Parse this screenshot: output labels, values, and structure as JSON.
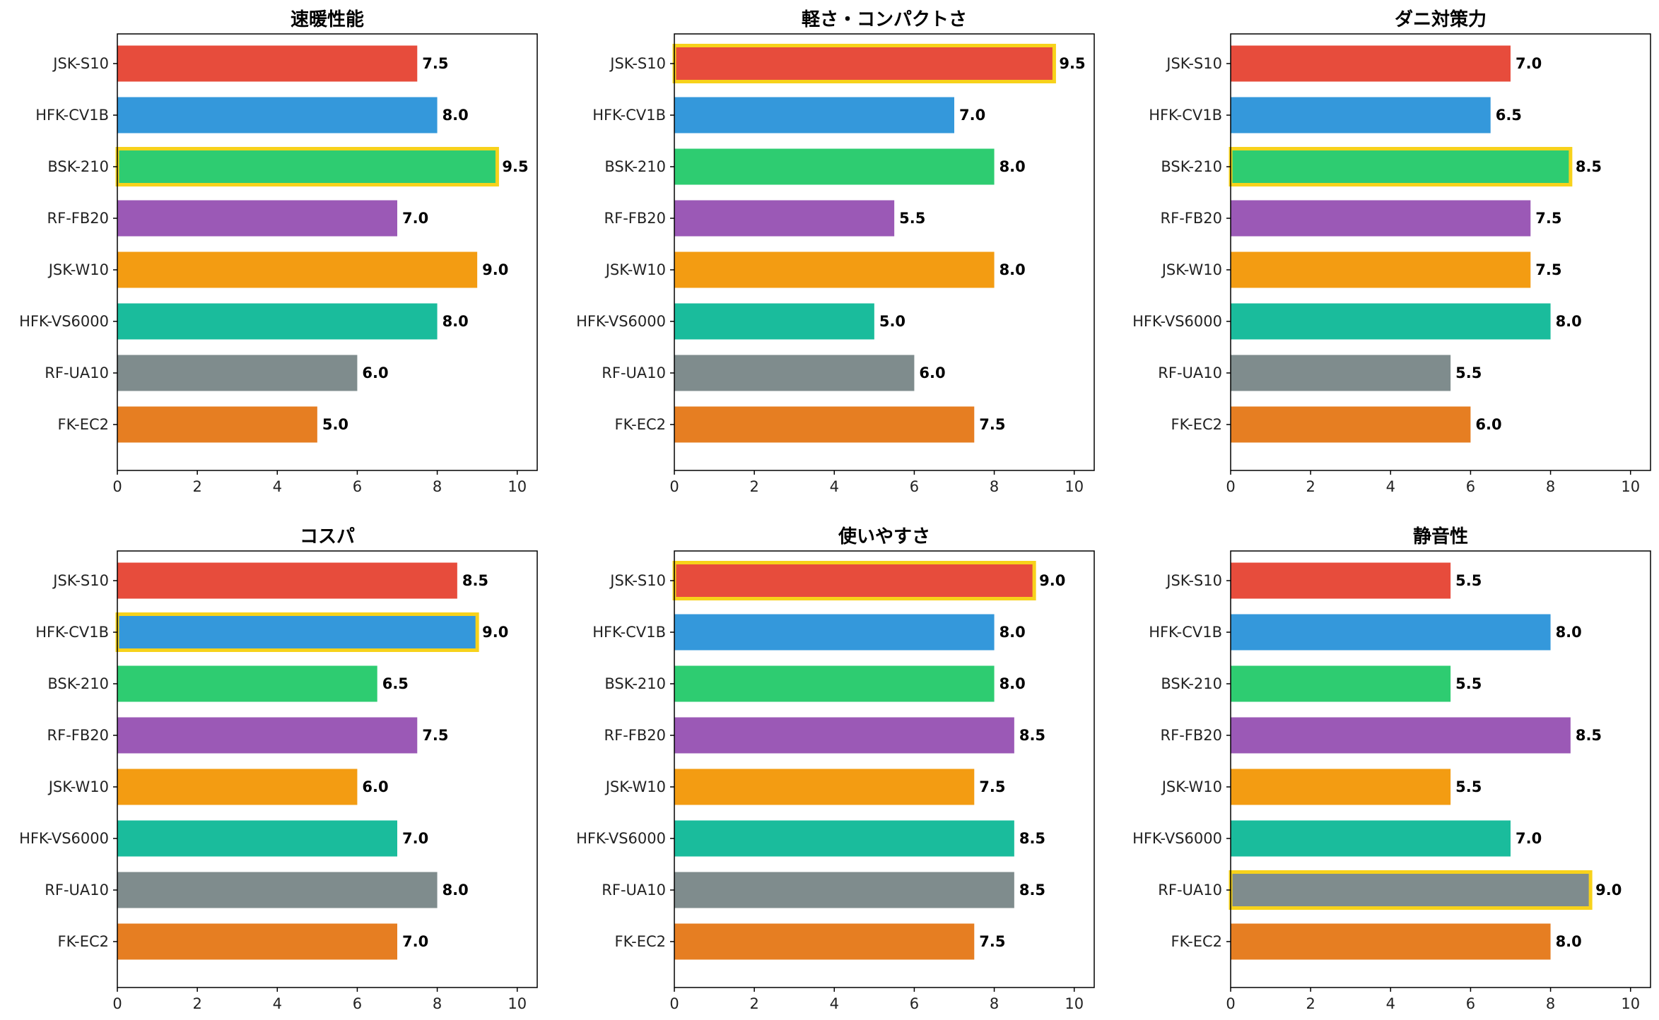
{
  "colors": {
    "JSK-S10": "#e74c3c",
    "HFK-CV1B": "#3498db",
    "BSK-210": "#2ecc71",
    "RF-FB20": "#9b59b6",
    "JSK-W10": "#f39c12",
    "HFK-VS6000": "#1abc9c",
    "RF-UA10": "#7f8c8d",
    "FK-EC2": "#e67e22",
    "highlight": "#f7d21b"
  },
  "chart_data": [
    {
      "type": "bar",
      "orientation": "horizontal",
      "title": "速暖性能",
      "categories": [
        "JSK-S10",
        "HFK-CV1B",
        "BSK-210",
        "RF-FB20",
        "JSK-W10",
        "HFK-VS6000",
        "RF-UA10",
        "FK-EC2"
      ],
      "values": [
        7.5,
        8.0,
        9.5,
        7.0,
        9.0,
        8.0,
        6.0,
        5.0
      ],
      "value_labels": [
        "7.5",
        "8.0",
        "9.5",
        "7.0",
        "9.0",
        "8.0",
        "6.0",
        "5.0"
      ],
      "highlight": "BSK-210",
      "xlim": [
        0,
        10.5
      ],
      "xticks": [
        0,
        2,
        4,
        6,
        8,
        10
      ],
      "xtick_labels": [
        "0",
        "2",
        "4",
        "6",
        "8",
        "10"
      ],
      "grid": false
    },
    {
      "type": "bar",
      "orientation": "horizontal",
      "title": "軽さ・コンパクトさ",
      "categories": [
        "JSK-S10",
        "HFK-CV1B",
        "BSK-210",
        "RF-FB20",
        "JSK-W10",
        "HFK-VS6000",
        "RF-UA10",
        "FK-EC2"
      ],
      "values": [
        9.5,
        7.0,
        8.0,
        5.5,
        8.0,
        5.0,
        6.0,
        7.5
      ],
      "value_labels": [
        "9.5",
        "7.0",
        "8.0",
        "5.5",
        "8.0",
        "5.0",
        "6.0",
        "7.5"
      ],
      "highlight": "JSK-S10",
      "xlim": [
        0,
        10.5
      ],
      "xticks": [
        0,
        2,
        4,
        6,
        8,
        10
      ],
      "xtick_labels": [
        "0",
        "2",
        "4",
        "6",
        "8",
        "10"
      ],
      "grid": false
    },
    {
      "type": "bar",
      "orientation": "horizontal",
      "title": "ダニ対策力",
      "categories": [
        "JSK-S10",
        "HFK-CV1B",
        "BSK-210",
        "RF-FB20",
        "JSK-W10",
        "HFK-VS6000",
        "RF-UA10",
        "FK-EC2"
      ],
      "values": [
        7.0,
        6.5,
        8.5,
        7.5,
        7.5,
        8.0,
        5.5,
        6.0
      ],
      "value_labels": [
        "7.0",
        "6.5",
        "8.5",
        "7.5",
        "7.5",
        "8.0",
        "5.5",
        "6.0"
      ],
      "highlight": "BSK-210",
      "xlim": [
        0,
        10.5
      ],
      "xticks": [
        0,
        2,
        4,
        6,
        8,
        10
      ],
      "xtick_labels": [
        "0",
        "2",
        "4",
        "6",
        "8",
        "10"
      ],
      "grid": false
    },
    {
      "type": "bar",
      "orientation": "horizontal",
      "title": "コスパ",
      "categories": [
        "JSK-S10",
        "HFK-CV1B",
        "BSK-210",
        "RF-FB20",
        "JSK-W10",
        "HFK-VS6000",
        "RF-UA10",
        "FK-EC2"
      ],
      "values": [
        8.5,
        9.0,
        6.5,
        7.5,
        6.0,
        7.0,
        8.0,
        7.0
      ],
      "value_labels": [
        "8.5",
        "9.0",
        "6.5",
        "7.5",
        "6.0",
        "7.0",
        "8.0",
        "7.0"
      ],
      "highlight": "HFK-CV1B",
      "xlim": [
        0,
        10.5
      ],
      "xticks": [
        0,
        2,
        4,
        6,
        8,
        10
      ],
      "xtick_labels": [
        "0",
        "2",
        "4",
        "6",
        "8",
        "10"
      ],
      "grid": false
    },
    {
      "type": "bar",
      "orientation": "horizontal",
      "title": "使いやすさ",
      "categories": [
        "JSK-S10",
        "HFK-CV1B",
        "BSK-210",
        "RF-FB20",
        "JSK-W10",
        "HFK-VS6000",
        "RF-UA10",
        "FK-EC2"
      ],
      "values": [
        9.0,
        8.0,
        8.0,
        8.5,
        7.5,
        8.5,
        8.5,
        7.5
      ],
      "value_labels": [
        "9.0",
        "8.0",
        "8.0",
        "8.5",
        "7.5",
        "8.5",
        "8.5",
        "7.5"
      ],
      "highlight": "JSK-S10",
      "xlim": [
        0,
        10.5
      ],
      "xticks": [
        0,
        2,
        4,
        6,
        8,
        10
      ],
      "xtick_labels": [
        "0",
        "2",
        "4",
        "6",
        "8",
        "10"
      ],
      "grid": false
    },
    {
      "type": "bar",
      "orientation": "horizontal",
      "title": "静音性",
      "categories": [
        "JSK-S10",
        "HFK-CV1B",
        "BSK-210",
        "RF-FB20",
        "JSK-W10",
        "HFK-VS6000",
        "RF-UA10",
        "FK-EC2"
      ],
      "values": [
        5.5,
        8.0,
        5.5,
        8.5,
        5.5,
        7.0,
        9.0,
        8.0
      ],
      "value_labels": [
        "5.5",
        "8.0",
        "5.5",
        "8.5",
        "5.5",
        "7.0",
        "9.0",
        "8.0"
      ],
      "highlight": "RF-UA10",
      "xlim": [
        0,
        10.5
      ],
      "xticks": [
        0,
        2,
        4,
        6,
        8,
        10
      ],
      "xtick_labels": [
        "0",
        "2",
        "4",
        "6",
        "8",
        "10"
      ],
      "grid": false
    }
  ]
}
